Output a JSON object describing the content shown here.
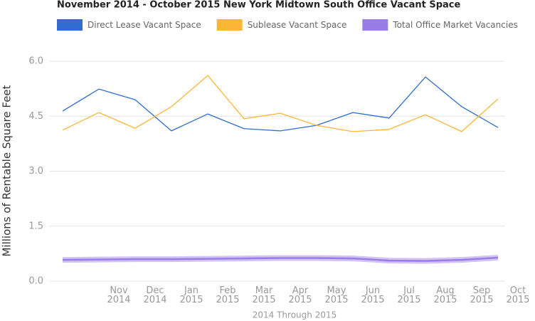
{
  "chart_data": {
    "type": "line",
    "title": "November 2014 - October 2015 New York Midtown South Office Vacant Space",
    "y_label": "Millions of Rentable Square Feet",
    "x_label": "2014 Through 2015",
    "categories": [
      null,
      "Nov 2014",
      "Dec 2014",
      "Jan 2015",
      "Feb 2015",
      "Mar 2015",
      "Apr 2015",
      "May 2015",
      "Jun 2015",
      "Jul 2015",
      "Aug 2015",
      "Sep 2015",
      "Oct 2015"
    ],
    "series": [
      {
        "name": "Direct Lease Vacant Space",
        "color": "#2f6ed0",
        "values": [
          4.64,
          5.24,
          4.95,
          4.1,
          4.56,
          4.16,
          4.1,
          4.25,
          4.6,
          4.45,
          5.57,
          4.76,
          4.19
        ]
      },
      {
        "name": "Sublease Vacant Space",
        "color": "#fbb638",
        "values": [
          4.12,
          4.6,
          4.17,
          4.76,
          5.61,
          4.43,
          4.58,
          4.25,
          4.08,
          4.14,
          4.54,
          4.08,
          4.97
        ]
      },
      {
        "name": "Total Office Market Vacancies",
        "color": "#9a7ce8",
        "values": [
          0.58,
          0.59,
          0.6,
          0.6,
          0.61,
          0.62,
          0.63,
          0.63,
          0.62,
          0.56,
          0.55,
          0.58,
          0.64
        ]
      }
    ],
    "ylim": [
      0,
      6
    ],
    "yticks": [
      {
        "value": 0,
        "label": "0.0"
      },
      1.5,
      {
        "value": 3,
        "label": "3.0"
      },
      4.5,
      {
        "value": 6,
        "label": "6.0"
      }
    ],
    "grid": true,
    "legend": "top"
  }
}
